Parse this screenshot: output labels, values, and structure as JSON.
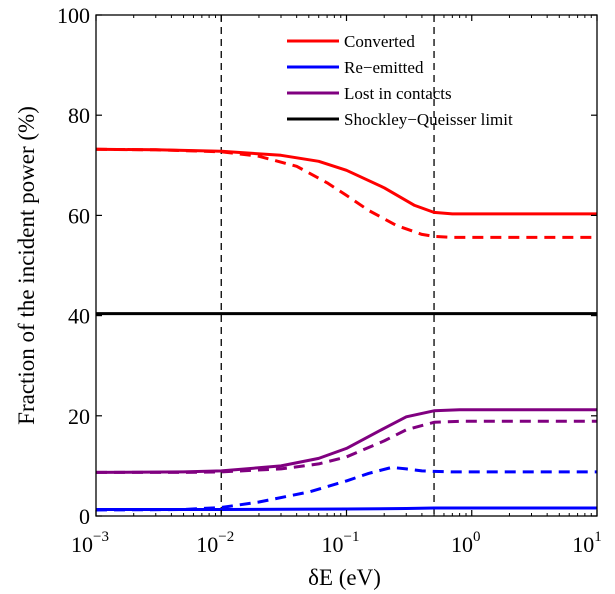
{
  "chart_data": {
    "type": "line",
    "title": "",
    "xlabel": "δE (eV)",
    "ylabel": "Fraction of the incident power (%)",
    "xscale": "log",
    "xlim": [
      0.001,
      10
    ],
    "ylim": [
      0,
      100
    ],
    "x_ticks": [
      {
        "value": 0.001,
        "base": "10",
        "exp": "−3"
      },
      {
        "value": 0.01,
        "base": "10",
        "exp": "−2"
      },
      {
        "value": 0.1,
        "base": "10",
        "exp": "−1"
      },
      {
        "value": 1,
        "base": "10",
        "exp": "0"
      },
      {
        "value": 10,
        "base": "10",
        "exp": "1"
      }
    ],
    "y_ticks": [
      "0",
      "20",
      "40",
      "60",
      "80",
      "100"
    ],
    "grid": false,
    "legend_position": "top-right",
    "legend": [
      {
        "label": "Converted",
        "color": "#ff0000"
      },
      {
        "label": "Re−emitted",
        "color": "#0000ff"
      },
      {
        "label": "Lost in contacts",
        "color": "#800080"
      },
      {
        "label": "Shockley−Queisser limit",
        "color": "#000000"
      }
    ],
    "vlines": [
      0.01,
      0.5
    ],
    "series": [
      {
        "name": "Converted",
        "color": "#ff0000",
        "dash": "solid",
        "x": [
          0.001,
          0.003,
          0.01,
          0.03,
          0.06,
          0.1,
          0.2,
          0.35,
          0.5,
          0.7,
          1,
          3,
          10
        ],
        "y": [
          73.2,
          73.1,
          72.8,
          72.0,
          70.8,
          69.0,
          65.5,
          62.0,
          60.6,
          60.3,
          60.3,
          60.3,
          60.3
        ]
      },
      {
        "name": "Converted",
        "color": "#ff0000",
        "dash": "dashed",
        "x": [
          0.001,
          0.003,
          0.01,
          0.02,
          0.04,
          0.07,
          0.1,
          0.15,
          0.25,
          0.4,
          0.5,
          0.7,
          1,
          3,
          10
        ],
        "y": [
          73.2,
          73.1,
          72.7,
          71.8,
          69.8,
          66.5,
          64.0,
          61.0,
          58.0,
          56.2,
          55.8,
          55.6,
          55.6,
          55.6,
          55.6
        ]
      },
      {
        "name": "Re−emitted",
        "color": "#0000ff",
        "dash": "solid",
        "x": [
          0.001,
          0.01,
          0.1,
          0.3,
          0.5,
          1,
          10
        ],
        "y": [
          1.3,
          1.3,
          1.4,
          1.5,
          1.6,
          1.6,
          1.6
        ]
      },
      {
        "name": "Re−emitted",
        "color": "#0000ff",
        "dash": "dashed",
        "x": [
          0.001,
          0.005,
          0.01,
          0.02,
          0.05,
          0.1,
          0.15,
          0.23,
          0.3,
          0.4,
          0.5,
          0.7,
          1,
          3,
          10
        ],
        "y": [
          1.2,
          1.3,
          1.7,
          2.8,
          4.8,
          7.0,
          8.5,
          9.7,
          9.4,
          9.0,
          8.9,
          8.8,
          8.8,
          8.8,
          8.8
        ]
      },
      {
        "name": "Lost in contacts",
        "color": "#800080",
        "dash": "solid",
        "x": [
          0.001,
          0.005,
          0.01,
          0.03,
          0.06,
          0.1,
          0.2,
          0.3,
          0.5,
          0.8,
          1,
          3,
          10
        ],
        "y": [
          8.7,
          8.8,
          9.0,
          10.0,
          11.5,
          13.5,
          17.5,
          19.8,
          21.0,
          21.2,
          21.2,
          21.2,
          21.2
        ]
      },
      {
        "name": "Lost in contacts",
        "color": "#800080",
        "dash": "dashed",
        "x": [
          0.001,
          0.005,
          0.01,
          0.03,
          0.06,
          0.1,
          0.2,
          0.3,
          0.5,
          0.8,
          1,
          3,
          10
        ],
        "y": [
          8.7,
          8.7,
          8.8,
          9.4,
          10.4,
          11.8,
          15.0,
          17.2,
          18.7,
          18.9,
          18.9,
          18.9,
          18.9
        ]
      },
      {
        "name": "Shockley−Queisser limit",
        "color": "#000000",
        "dash": "solid",
        "x": [
          0.001,
          10
        ],
        "y": [
          40.4,
          40.4
        ]
      }
    ]
  }
}
